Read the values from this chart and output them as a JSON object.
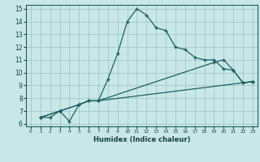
{
  "xlabel": "Humidex (Indice chaleur)",
  "xlim": [
    -0.5,
    23.5
  ],
  "ylim": [
    5.8,
    15.3
  ],
  "xticks": [
    0,
    1,
    2,
    3,
    4,
    5,
    6,
    7,
    8,
    9,
    10,
    11,
    12,
    13,
    14,
    15,
    16,
    17,
    18,
    19,
    20,
    21,
    22,
    23
  ],
  "yticks": [
    6,
    7,
    8,
    9,
    10,
    11,
    12,
    13,
    14,
    15
  ],
  "background_color": "#c8e8e8",
  "line_color": "#1a6060",
  "grid_color": "#9dbfbf",
  "line1_x": [
    1,
    2,
    3,
    4,
    5,
    6,
    7,
    8,
    9,
    10,
    11,
    12,
    13,
    14,
    15,
    16,
    17,
    18,
    19,
    20,
    21,
    22,
    23
  ],
  "line1_y": [
    6.5,
    6.5,
    7.0,
    6.2,
    7.5,
    7.8,
    7.8,
    9.5,
    11.5,
    14.0,
    15.0,
    14.5,
    13.5,
    13.3,
    12.0,
    11.8,
    11.2,
    11.0,
    11.0,
    10.3,
    10.2,
    9.2,
    9.3
  ],
  "line2_x": [
    1,
    3,
    5,
    6,
    7,
    23
  ],
  "line2_y": [
    6.5,
    7.0,
    7.5,
    7.8,
    7.8,
    9.3
  ],
  "line3_x": [
    1,
    3,
    5,
    6,
    7,
    19,
    20,
    21,
    22,
    23
  ],
  "line3_y": [
    6.5,
    7.0,
    7.5,
    7.8,
    7.8,
    10.8,
    11.0,
    10.2,
    9.2,
    9.3
  ]
}
